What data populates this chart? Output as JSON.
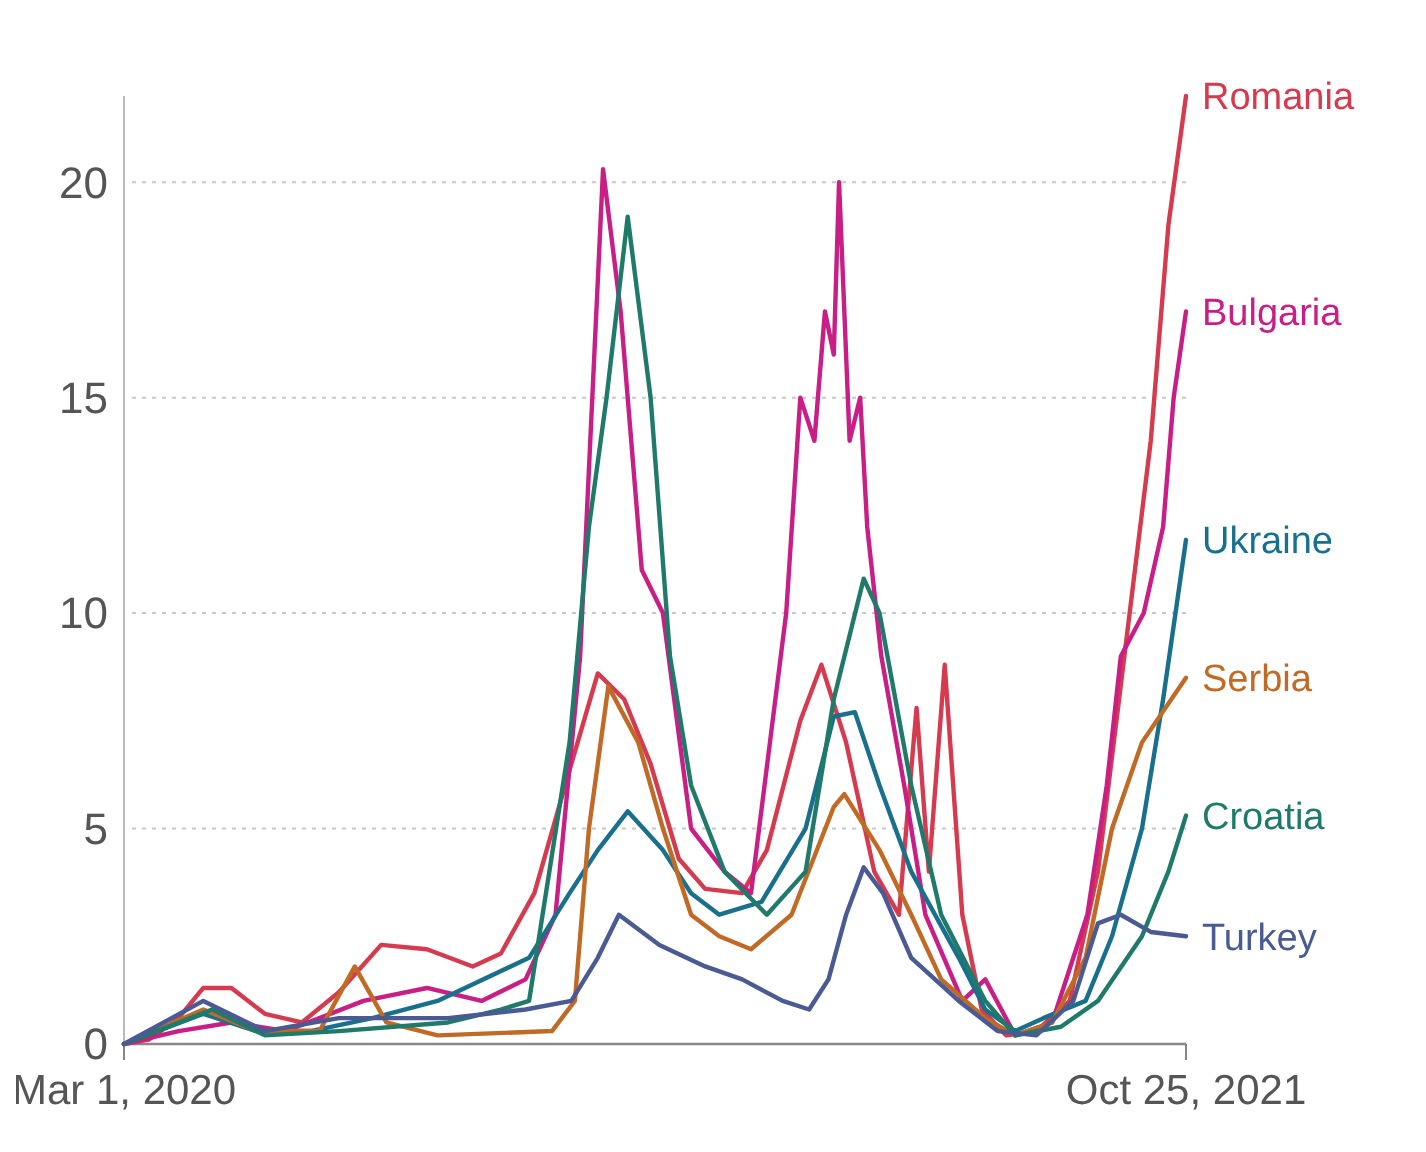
{
  "chart_data": {
    "type": "line",
    "xlim": [
      "2020-03-01",
      "2021-10-25"
    ],
    "xticks": [
      {
        "value": "2020-03-01",
        "label": "Mar 1, 2020"
      },
      {
        "value": "2021-10-25",
        "label": "Oct 25, 2021"
      }
    ],
    "ylim": [
      0,
      22
    ],
    "yticks": [
      0,
      5,
      10,
      15,
      20
    ],
    "grid": "y",
    "line_style": "solid",
    "series": [
      {
        "name": "Romania",
        "color": "#d63a4e",
        "x": [
          "2020-03-01",
          "2020-03-15",
          "2020-04-01",
          "2020-04-15",
          "2020-05-01",
          "2020-05-20",
          "2020-06-10",
          "2020-07-01",
          "2020-07-25",
          "2020-08-20",
          "2020-09-15",
          "2020-10-01",
          "2020-10-20",
          "2020-11-10",
          "2020-11-25",
          "2020-12-10",
          "2020-12-25",
          "2021-01-10",
          "2021-01-25",
          "2021-02-15",
          "2021-03-01",
          "2021-03-20",
          "2021-04-01",
          "2021-04-15",
          "2021-05-01",
          "2021-05-15",
          "2021-05-25",
          "2021-06-01",
          "2021-06-10",
          "2021-06-20",
          "2021-07-01",
          "2021-07-15",
          "2021-08-01",
          "2021-08-20",
          "2021-09-05",
          "2021-09-20",
          "2021-10-05",
          "2021-10-15",
          "2021-10-25"
        ],
        "values": [
          0,
          0.1,
          0.6,
          1.3,
          1.3,
          0.7,
          0.5,
          1.2,
          2.3,
          2.2,
          1.8,
          2.1,
          3.5,
          6.5,
          8.6,
          8,
          6.5,
          4.3,
          3.6,
          3.5,
          4.5,
          7.5,
          8.8,
          7,
          4,
          3,
          7.8,
          4,
          8.8,
          3,
          0.8,
          0.2,
          0.3,
          1,
          4,
          9,
          14,
          19,
          22
        ]
      },
      {
        "name": "Bulgaria",
        "color": "#c81e86",
        "x": [
          "2020-03-01",
          "2020-04-01",
          "2020-05-01",
          "2020-06-01",
          "2020-07-15",
          "2020-08-20",
          "2020-09-20",
          "2020-10-15",
          "2020-11-01",
          "2020-11-15",
          "2020-11-28",
          "2020-12-08",
          "2020-12-20",
          "2021-01-01",
          "2021-01-17",
          "2021-02-05",
          "2021-02-20",
          "2021-03-12",
          "2021-03-20",
          "2021-03-28",
          "2021-04-03",
          "2021-04-08",
          "2021-04-11",
          "2021-04-17",
          "2021-04-23",
          "2021-04-27",
          "2021-05-05",
          "2021-05-18",
          "2021-05-30",
          "2021-06-20",
          "2021-07-03",
          "2021-07-20",
          "2021-08-10",
          "2021-08-30",
          "2021-09-10",
          "2021-09-18",
          "2021-10-01",
          "2021-10-12",
          "2021-10-18",
          "2021-10-25"
        ],
        "values": [
          0,
          0.3,
          0.5,
          0.3,
          1,
          1.3,
          1,
          1.5,
          3,
          9,
          20.3,
          17,
          11,
          10,
          5,
          4,
          3.5,
          10,
          15,
          14,
          17,
          16,
          20,
          14,
          15,
          12,
          9,
          6,
          3,
          1,
          1.5,
          0.2,
          0.5,
          3,
          6,
          9,
          10,
          12,
          15,
          17
        ]
      },
      {
        "name": "Ukraine",
        "color": "#18708c",
        "x": [
          "2020-03-01",
          "2020-04-15",
          "2020-05-15",
          "2020-06-15",
          "2020-07-20",
          "2020-08-26",
          "2020-10-17",
          "2020-11-09",
          "2020-11-25",
          "2020-12-12",
          "2021-01-01",
          "2021-01-17",
          "2021-02-02",
          "2021-02-26",
          "2021-03-23",
          "2021-04-08",
          "2021-04-20",
          "2021-05-04",
          "2021-05-22",
          "2021-06-18",
          "2021-07-03",
          "2021-07-20",
          "2021-08-05",
          "2021-08-29",
          "2021-09-13",
          "2021-09-30",
          "2021-10-12",
          "2021-10-25"
        ],
        "values": [
          0,
          0.7,
          0.3,
          0.3,
          0.6,
          1,
          2,
          3.5,
          4.5,
          5.4,
          4.5,
          3.5,
          3,
          3.3,
          5,
          7.6,
          7.7,
          6,
          4,
          2,
          0.8,
          0.3,
          0.6,
          1,
          2.5,
          5,
          8,
          11.7
        ]
      },
      {
        "name": "Serbia",
        "color": "#c06a26",
        "x": [
          "2020-03-01",
          "2020-04-15",
          "2020-05-15",
          "2020-06-20",
          "2020-07-10",
          "2020-07-28",
          "2020-08-26",
          "2020-10-30",
          "2020-11-12",
          "2020-11-20",
          "2020-12-01",
          "2020-12-18",
          "2021-01-01",
          "2021-01-17",
          "2021-02-02",
          "2021-02-20",
          "2021-03-15",
          "2021-04-08",
          "2021-04-14",
          "2021-05-04",
          "2021-05-22",
          "2021-06-08",
          "2021-07-03",
          "2021-07-20",
          "2021-08-10",
          "2021-08-29",
          "2021-09-13",
          "2021-09-30",
          "2021-10-25"
        ],
        "values": [
          0,
          0.8,
          0.3,
          0.3,
          1.8,
          0.5,
          0.2,
          0.3,
          1,
          5,
          8.3,
          7,
          5,
          3,
          2.5,
          2.2,
          3,
          5.5,
          5.8,
          4.5,
          3,
          1.5,
          0.6,
          0.2,
          0.5,
          2,
          5,
          7,
          8.5
        ]
      },
      {
        "name": "Croatia",
        "color": "#1f7a6a",
        "x": [
          "2020-03-01",
          "2020-04-20",
          "2020-05-20",
          "2020-07-01",
          "2020-09-01",
          "2020-10-01",
          "2020-10-17",
          "2020-11-09",
          "2020-11-20",
          "2020-11-30",
          "2020-12-12",
          "2020-12-25",
          "2021-01-05",
          "2021-01-17",
          "2021-02-05",
          "2021-03-01",
          "2021-03-23",
          "2021-04-08",
          "2021-04-25",
          "2021-05-04",
          "2021-05-22",
          "2021-06-08",
          "2021-07-03",
          "2021-07-20",
          "2021-08-15",
          "2021-09-05",
          "2021-09-30",
          "2021-10-15",
          "2021-10-25"
        ],
        "values": [
          0,
          0.8,
          0.2,
          0.3,
          0.5,
          0.8,
          1,
          7,
          12,
          15,
          19.2,
          15,
          9,
          6,
          4,
          3,
          4,
          8,
          10.8,
          10,
          6,
          3,
          1,
          0.2,
          0.4,
          1,
          2.5,
          4,
          5.3
        ]
      },
      {
        "name": "Turkey",
        "color": "#4a5a92",
        "x": [
          "2020-03-01",
          "2020-04-15",
          "2020-05-20",
          "2020-07-01",
          "2020-09-01",
          "2020-10-15",
          "2020-11-10",
          "2020-11-25",
          "2020-12-07",
          "2020-12-30",
          "2021-01-25",
          "2021-02-15",
          "2021-03-10",
          "2021-03-25",
          "2021-04-05",
          "2021-04-15",
          "2021-04-25",
          "2021-05-06",
          "2021-05-22",
          "2021-06-18",
          "2021-07-10",
          "2021-08-01",
          "2021-08-22",
          "2021-09-05",
          "2021-09-18",
          "2021-10-05",
          "2021-10-25"
        ],
        "values": [
          0,
          1,
          0.3,
          0.6,
          0.6,
          0.8,
          1,
          2,
          3,
          2.3,
          1.8,
          1.5,
          1,
          0.8,
          1.5,
          3,
          4.1,
          3.5,
          2,
          1,
          0.3,
          0.2,
          1,
          2.8,
          3,
          2.6,
          2.5
        ]
      }
    ]
  }
}
